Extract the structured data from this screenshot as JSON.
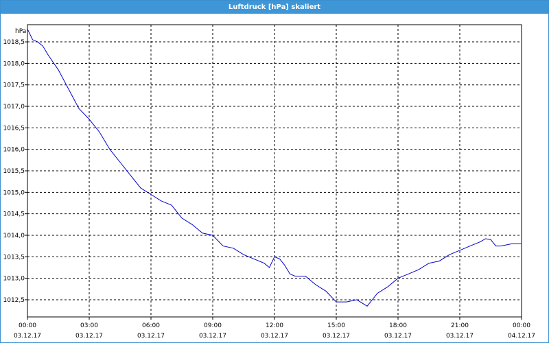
{
  "window": {
    "title": "Luftdruck [hPa] skaliert"
  },
  "chart_data": {
    "type": "line",
    "title": "Luftdruck [hPa] skaliert",
    "ylabel": "hPa",
    "xlabel": "",
    "ylim": [
      1012.1,
      1018.9
    ],
    "yticks": [
      "1018,5",
      "1018,0",
      "1017,5",
      "1017,0",
      "1016,5",
      "1016,0",
      "1015,5",
      "1015,0",
      "1014,5",
      "1014,0",
      "1013,5",
      "1013,0",
      "1012,5"
    ],
    "ytick_values": [
      1018.5,
      1018.0,
      1017.5,
      1017.0,
      1016.5,
      1016.0,
      1015.5,
      1015.0,
      1014.5,
      1014.0,
      1013.5,
      1013.0,
      1012.5
    ],
    "xlim_hours": [
      0,
      24
    ],
    "xticks": [
      {
        "time": "00:00",
        "date": "03.12.17",
        "hour": 0
      },
      {
        "time": "03:00",
        "date": "03.12.17",
        "hour": 3
      },
      {
        "time": "06:00",
        "date": "03.12.17",
        "hour": 6
      },
      {
        "time": "09:00",
        "date": "03.12.17",
        "hour": 9
      },
      {
        "time": "12:00",
        "date": "03.12.17",
        "hour": 12
      },
      {
        "time": "15:00",
        "date": "03.12.17",
        "hour": 15
      },
      {
        "time": "18:00",
        "date": "03.12.17",
        "hour": 18
      },
      {
        "time": "21:00",
        "date": "03.12.17",
        "hour": 21
      },
      {
        "time": "00:00",
        "date": "04.12.17",
        "hour": 24
      }
    ],
    "grid": true,
    "series": [
      {
        "color": "#0000cc",
        "x_hours": [
          0,
          0.25,
          0.5,
          0.75,
          1,
          1.5,
          2,
          2.5,
          3,
          3.5,
          4,
          4.5,
          5,
          5.5,
          6,
          6.5,
          7,
          7.5,
          8,
          8.5,
          9,
          9.5,
          10,
          10.5,
          11,
          11.5,
          11.75,
          12,
          12.25,
          12.5,
          12.75,
          13,
          13.5,
          14,
          14.5,
          15,
          15.5,
          16,
          16.5,
          17,
          17.5,
          18,
          18.5,
          19,
          19.5,
          20,
          20.5,
          21,
          21.5,
          22,
          22.25,
          22.5,
          22.75,
          23,
          23.5,
          24
        ],
        "values": [
          1018.8,
          1018.55,
          1018.5,
          1018.4,
          1018.2,
          1017.85,
          1017.4,
          1016.95,
          1016.7,
          1016.4,
          1016.0,
          1015.7,
          1015.4,
          1015.1,
          1014.95,
          1014.8,
          1014.7,
          1014.4,
          1014.25,
          1014.05,
          1014.0,
          1013.75,
          1013.7,
          1013.55,
          1013.45,
          1013.35,
          1013.25,
          1013.5,
          1013.45,
          1013.3,
          1013.1,
          1013.05,
          1013.05,
          1012.85,
          1012.7,
          1012.45,
          1012.45,
          1012.5,
          1012.35,
          1012.65,
          1012.8,
          1013.0,
          1013.1,
          1013.2,
          1013.35,
          1013.4,
          1013.55,
          1013.65,
          1013.75,
          1013.85,
          1013.92,
          1013.9,
          1013.75,
          1013.75,
          1013.8,
          1013.8
        ]
      }
    ]
  }
}
